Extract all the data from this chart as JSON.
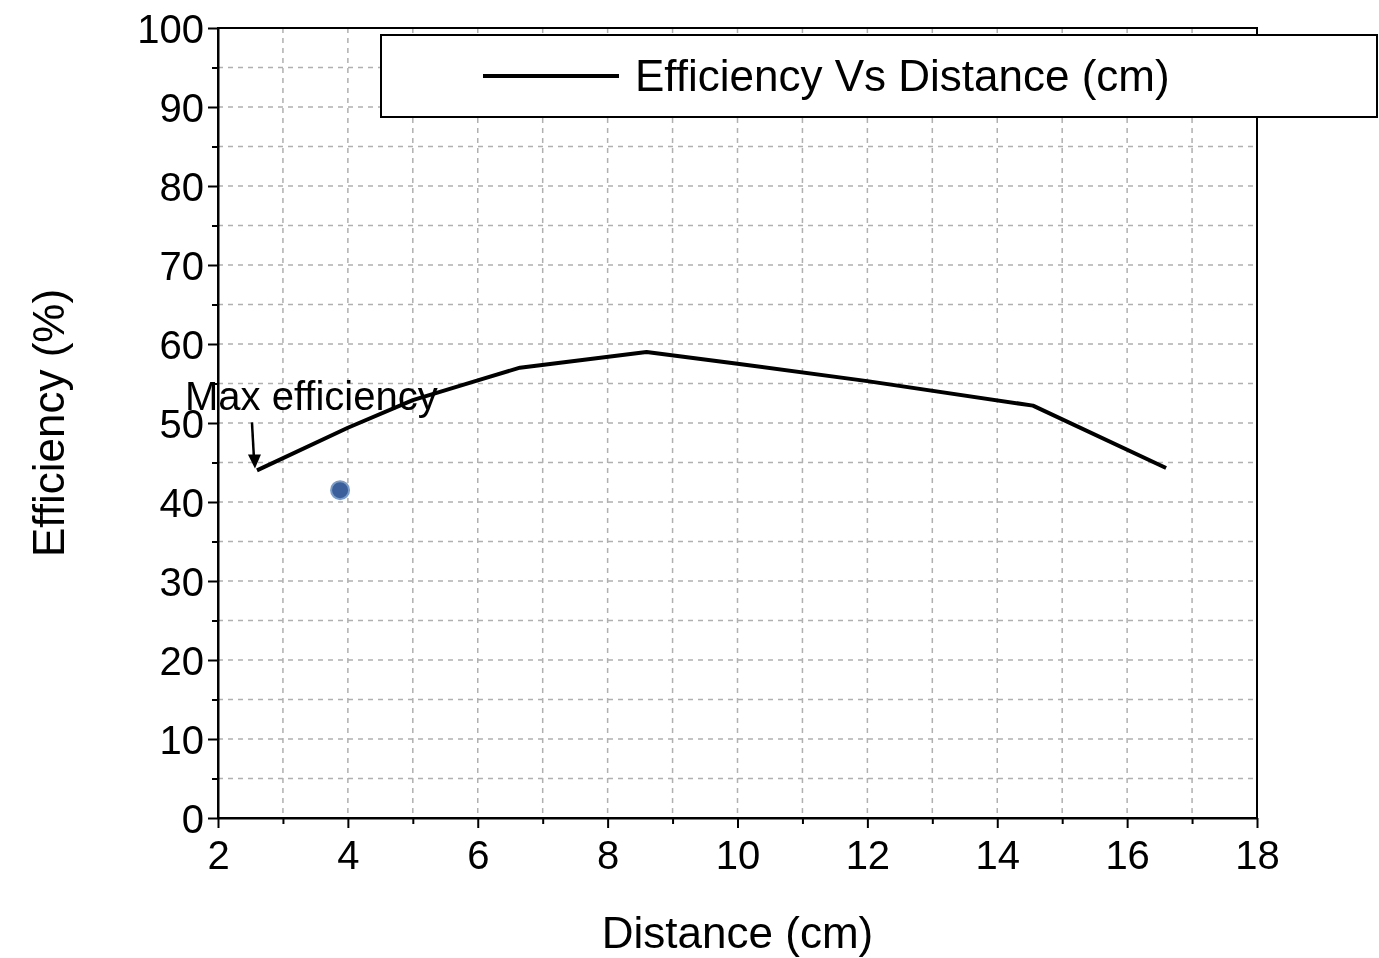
{
  "chart_data": {
    "type": "line",
    "xlabel": "Distance (cm)",
    "ylabel": "Efficiency (%)",
    "xlim": [
      2,
      18
    ],
    "ylim": [
      0,
      100
    ],
    "xticks": [
      2,
      {
        "value": 3,
        "label": null
      },
      4,
      {
        "value": 5,
        "label": null
      },
      6,
      {
        "value": 7,
        "label": null
      },
      8,
      {
        "value": 9,
        "label": null
      },
      10,
      {
        "value": 11,
        "label": null
      },
      12,
      {
        "value": 13,
        "label": null
      },
      14,
      {
        "value": 15,
        "label": null
      },
      16,
      {
        "value": 17,
        "label": null
      },
      18
    ],
    "yticks": [
      0,
      {
        "value": 5,
        "label": null
      },
      10,
      {
        "value": 15,
        "label": null
      },
      20,
      {
        "value": 25,
        "label": null
      },
      30,
      {
        "value": 35,
        "label": null
      },
      40,
      {
        "value": 45,
        "label": null
      },
      50,
      {
        "value": 55,
        "label": null
      },
      60,
      {
        "value": 65,
        "label": null
      },
      70,
      {
        "value": 75,
        "label": null
      },
      80,
      {
        "value": 85,
        "label": null
      },
      90,
      {
        "value": 95,
        "label": null
      },
      100
    ],
    "grid": true,
    "legend": "top right",
    "series": [
      {
        "name": "Efficiency Vs Distance (cm)",
        "color": "#000000",
        "x": [
          2.6,
          4,
          5,
          6,
          6.65,
          8.6,
          10,
          12,
          14.55,
          16.6
        ],
        "values": [
          44,
          49.4,
          52.9,
          55.4,
          57,
          59,
          57.5,
          55.3,
          52.2,
          44.3
        ]
      },
      {
        "type": "scatter",
        "color": "#3a5f9a",
        "x": [
          3.88
        ],
        "values": [
          41.5
        ]
      }
    ],
    "annotations": [
      {
        "text": "Max efficiency",
        "x": 2.6,
        "y": 44
      }
    ]
  }
}
